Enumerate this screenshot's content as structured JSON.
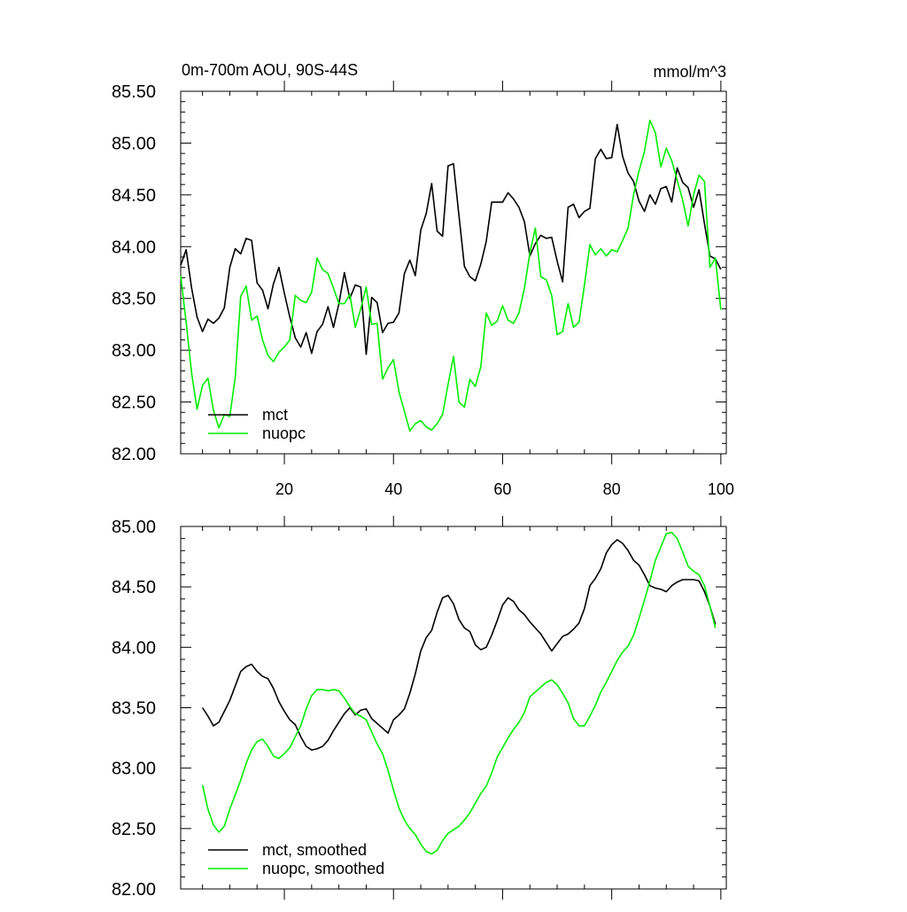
{
  "title_left": "0m-700m AOU, 90S-44S",
  "title_right": "mmol/m^3",
  "chart_data": [
    {
      "type": "line",
      "panel": "top",
      "title": "0m-700m AOU, 90S-44S",
      "units": "mmol/m^3",
      "xlim": [
        1,
        101
      ],
      "ylim": [
        82.0,
        85.5
      ],
      "x_major_ticks": [
        20,
        40,
        60,
        80,
        100
      ],
      "x_tick_labels": [
        "20",
        "40",
        "60",
        "80",
        "100"
      ],
      "y_major_ticks": [
        82.0,
        82.5,
        83.0,
        83.5,
        84.0,
        84.5,
        85.0,
        85.5
      ],
      "y_tick_labels": [
        "82.00",
        "82.50",
        "83.00",
        "83.50",
        "84.00",
        "84.50",
        "85.00",
        "85.50"
      ],
      "legend_position": "bottom-left",
      "series": [
        {
          "name": "mct",
          "color": "#000000",
          "x_start": 1,
          "values": [
            83.82,
            83.97,
            83.6,
            83.32,
            83.18,
            83.3,
            83.26,
            83.31,
            83.41,
            83.8,
            83.98,
            83.93,
            84.08,
            84.06,
            83.65,
            83.58,
            83.4,
            83.64,
            83.8,
            83.55,
            83.32,
            83.12,
            83.03,
            83.17,
            82.97,
            83.18,
            83.25,
            83.42,
            83.22,
            83.45,
            83.75,
            83.5,
            83.63,
            83.61,
            82.96,
            83.51,
            83.46,
            83.17,
            83.26,
            83.27,
            83.36,
            83.74,
            83.87,
            83.72,
            84.16,
            84.32,
            84.61,
            84.15,
            84.1,
            84.78,
            84.8,
            84.3,
            83.81,
            83.71,
            83.67,
            83.83,
            84.05,
            84.43,
            84.43,
            84.43,
            84.52,
            84.46,
            84.38,
            84.24,
            83.91,
            84.03,
            84.11,
            84.08,
            84.09,
            83.86,
            83.66,
            84.38,
            84.41,
            84.28,
            84.34,
            84.37,
            84.85,
            84.94,
            84.85,
            84.86,
            85.18,
            84.87,
            84.71,
            84.63,
            84.44,
            84.34,
            84.5,
            84.41,
            84.56,
            84.58,
            84.43,
            84.76,
            84.62,
            84.57,
            84.38,
            84.55,
            84.22,
            83.91,
            83.88,
            83.78
          ]
        },
        {
          "name": "nuopc",
          "color": "#00ee00",
          "x_start": 1,
          "values": [
            83.72,
            83.27,
            82.78,
            82.43,
            82.66,
            82.73,
            82.42,
            82.25,
            82.38,
            82.36,
            82.74,
            83.52,
            83.62,
            83.29,
            83.33,
            83.1,
            82.95,
            82.89,
            82.98,
            83.03,
            83.1,
            83.53,
            83.48,
            83.46,
            83.56,
            83.89,
            83.78,
            83.74,
            83.6,
            83.45,
            83.45,
            83.54,
            83.22,
            83.4,
            83.61,
            83.25,
            83.26,
            82.72,
            82.83,
            82.91,
            82.6,
            82.41,
            82.22,
            82.29,
            82.32,
            82.26,
            82.23,
            82.29,
            82.38,
            82.67,
            82.94,
            82.5,
            82.45,
            82.72,
            82.65,
            82.84,
            83.36,
            83.24,
            83.28,
            83.43,
            83.29,
            83.26,
            83.36,
            83.6,
            83.94,
            84.18,
            83.71,
            83.68,
            83.53,
            83.15,
            83.18,
            83.45,
            83.22,
            83.27,
            83.63,
            84.02,
            83.92,
            83.98,
            83.91,
            83.97,
            83.95,
            84.06,
            84.18,
            84.5,
            84.73,
            84.92,
            85.22,
            85.1,
            84.77,
            84.95,
            84.83,
            84.64,
            84.45,
            84.2,
            84.5,
            84.69,
            84.63,
            83.8,
            83.89,
            83.39
          ]
        }
      ]
    },
    {
      "type": "line",
      "panel": "bottom",
      "xlim": [
        1,
        101
      ],
      "ylim": [
        82.0,
        85.0
      ],
      "x_major_ticks": [
        20,
        40,
        60,
        80,
        100
      ],
      "y_major_ticks": [
        82.0,
        82.5,
        83.0,
        83.5,
        84.0,
        84.5,
        85.0
      ],
      "y_tick_labels": [
        "82.00",
        "82.50",
        "83.00",
        "83.50",
        "84.00",
        "84.50",
        "85.00"
      ],
      "legend_position": "bottom-left",
      "series": [
        {
          "name": "mct, smoothed",
          "color": "#000000",
          "x_start": 5,
          "values": [
            83.5,
            83.43,
            83.35,
            83.38,
            83.47,
            83.56,
            83.68,
            83.8,
            83.84,
            83.86,
            83.8,
            83.76,
            83.74,
            83.66,
            83.55,
            83.47,
            83.4,
            83.36,
            83.26,
            83.18,
            83.15,
            83.16,
            83.18,
            83.23,
            83.31,
            83.38,
            83.45,
            83.5,
            83.44,
            83.48,
            83.49,
            83.41,
            83.37,
            83.33,
            83.29,
            83.4,
            83.44,
            83.49,
            83.62,
            83.78,
            83.97,
            84.08,
            84.14,
            84.29,
            84.41,
            84.43,
            84.36,
            84.23,
            84.16,
            84.13,
            84.02,
            83.98,
            84.0,
            84.1,
            84.22,
            84.35,
            84.41,
            84.38,
            84.31,
            84.27,
            84.21,
            84.16,
            84.11,
            84.04,
            83.97,
            84.03,
            84.09,
            84.11,
            84.15,
            84.2,
            84.32,
            84.51,
            84.57,
            84.65,
            84.78,
            84.85,
            84.89,
            84.86,
            84.8,
            84.72,
            84.68,
            84.6,
            84.51,
            84.49,
            84.48,
            84.46,
            84.51,
            84.54,
            84.56,
            84.56,
            84.56,
            84.55,
            84.46,
            84.34,
            84.19
          ]
        },
        {
          "name": "nuopc, smoothed",
          "color": "#00ee00",
          "x_start": 5,
          "values": [
            82.86,
            82.66,
            82.53,
            82.47,
            82.52,
            82.66,
            82.78,
            82.9,
            83.04,
            83.15,
            83.22,
            83.24,
            83.18,
            83.1,
            83.08,
            83.12,
            83.17,
            83.26,
            83.35,
            83.49,
            83.6,
            83.65,
            83.65,
            83.64,
            83.65,
            83.64,
            83.58,
            83.51,
            83.45,
            83.43,
            83.4,
            83.3,
            83.2,
            83.12,
            82.98,
            82.82,
            82.67,
            82.57,
            82.5,
            82.45,
            82.37,
            82.31,
            82.29,
            82.32,
            82.4,
            82.46,
            82.49,
            82.52,
            82.57,
            82.63,
            82.71,
            82.79,
            82.85,
            82.96,
            83.09,
            83.17,
            83.25,
            83.32,
            83.38,
            83.46,
            83.59,
            83.63,
            83.67,
            83.71,
            83.73,
            83.69,
            83.62,
            83.54,
            83.41,
            83.35,
            83.35,
            83.43,
            83.52,
            83.63,
            83.71,
            83.8,
            83.89,
            83.96,
            84.01,
            84.1,
            84.24,
            84.39,
            84.55,
            84.72,
            84.83,
            84.94,
            84.95,
            84.9,
            84.79,
            84.67,
            84.63,
            84.6,
            84.51,
            84.34,
            84.16
          ]
        }
      ]
    }
  ]
}
